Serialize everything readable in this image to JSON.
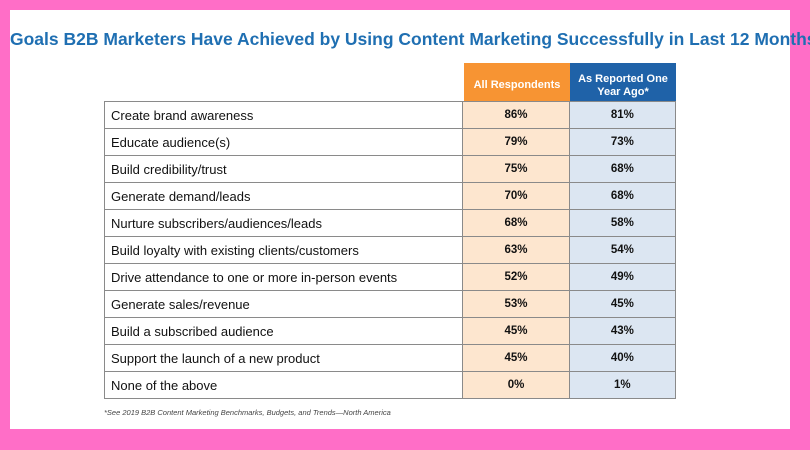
{
  "chart_data": {
    "type": "table",
    "title": "Goals B2B Marketers Have Achieved by Using Content Marketing Successfully in Last 12 Months",
    "columns": [
      "All Respondents",
      "As Reported One Year Ago*"
    ],
    "rows": [
      {
        "label": "Create brand awareness",
        "all": "86%",
        "prev": "81%"
      },
      {
        "label": "Educate audience(s)",
        "all": "79%",
        "prev": "73%"
      },
      {
        "label": "Build credibility/trust",
        "all": "75%",
        "prev": "68%"
      },
      {
        "label": "Generate demand/leads",
        "all": "70%",
        "prev": "68%"
      },
      {
        "label": "Nurture subscribers/audiences/leads",
        "all": "68%",
        "prev": "58%"
      },
      {
        "label": "Build loyalty with existing clients/customers",
        "all": "63%",
        "prev": "54%"
      },
      {
        "label": "Drive attendance to one or more in-person events",
        "all": "52%",
        "prev": "49%"
      },
      {
        "label": "Generate sales/revenue",
        "all": "53%",
        "prev": "45%"
      },
      {
        "label": "Build a subscribed audience",
        "all": "45%",
        "prev": "43%"
      },
      {
        "label": "Support the launch of a new product",
        "all": "45%",
        "prev": "40%"
      },
      {
        "label": "None of the above",
        "all": "0%",
        "prev": "1%"
      }
    ],
    "footnote": "*See 2019 B2B Content Marketing Benchmarks, Budgets, and Trends—North America"
  },
  "colors": {
    "frame": "#ff6ec7",
    "title": "#1f6fb2",
    "all_header": "#f79433",
    "prev_header": "#1f62a8",
    "all_cell": "#fde6cf",
    "prev_cell": "#dce6f2"
  }
}
